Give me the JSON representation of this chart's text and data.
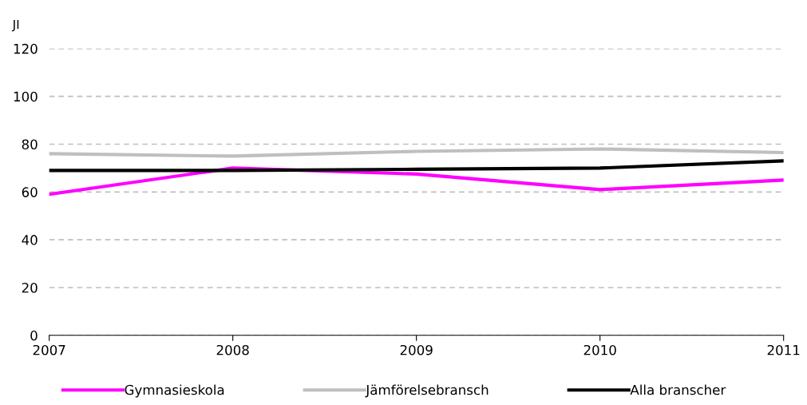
{
  "chart_data": {
    "type": "line",
    "ylabel": "JI",
    "x": [
      2007,
      2008,
      2009,
      2010,
      2011
    ],
    "series": [
      {
        "name": "Gymnasieskola",
        "color": "#ff00ff",
        "values": [
          59,
          70,
          67.5,
          61,
          65
        ]
      },
      {
        "name": "Jämförelsebransch",
        "color": "#bfbfbf",
        "values": [
          76,
          75,
          77,
          78,
          76.5
        ]
      },
      {
        "name": "Alla branscher",
        "color": "#000000",
        "values": [
          69,
          69,
          69.5,
          70,
          73
        ]
      }
    ],
    "xlim": [
      2007,
      2011
    ],
    "xticks": [
      2007,
      2008,
      2009,
      2010,
      2011
    ],
    "ylim": [
      0,
      120
    ],
    "yticks": [
      0,
      20,
      40,
      60,
      80,
      100,
      120
    ],
    "grid": "y",
    "legend": "bottom",
    "marker": "none",
    "line_style": "solid"
  }
}
